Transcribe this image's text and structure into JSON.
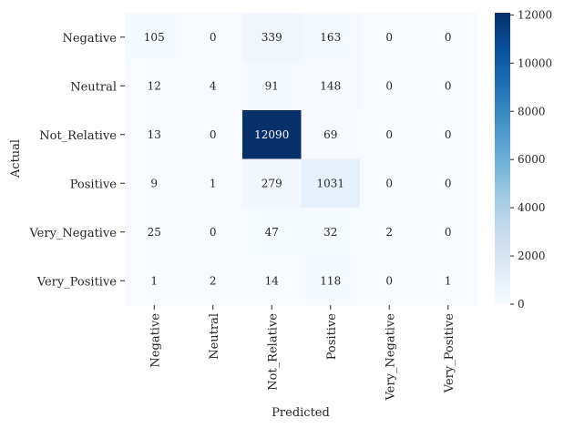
{
  "chart_data": {
    "type": "heatmap",
    "title": "",
    "xlabel": "Predicted",
    "ylabel": "Actual",
    "row_labels": [
      "Negative",
      "Neutral",
      "Not_Relative",
      "Positive",
      "Very_Negative",
      "Very_Positive"
    ],
    "col_labels": [
      "Negative",
      "Neutral",
      "Not_Relative",
      "Positive",
      "Very_Negative",
      "Very_Positive"
    ],
    "values": [
      [
        105,
        0,
        339,
        163,
        0,
        0
      ],
      [
        12,
        4,
        91,
        148,
        0,
        0
      ],
      [
        13,
        0,
        12090,
        69,
        0,
        0
      ],
      [
        9,
        1,
        279,
        1031,
        0,
        0
      ],
      [
        25,
        0,
        47,
        32,
        2,
        0
      ],
      [
        1,
        2,
        14,
        118,
        0,
        1
      ]
    ],
    "colorbar": {
      "colormap": "Blues",
      "range": [
        0,
        12090
      ],
      "ticks": [
        0,
        2000,
        4000,
        6000,
        8000,
        10000,
        12000
      ]
    }
  }
}
